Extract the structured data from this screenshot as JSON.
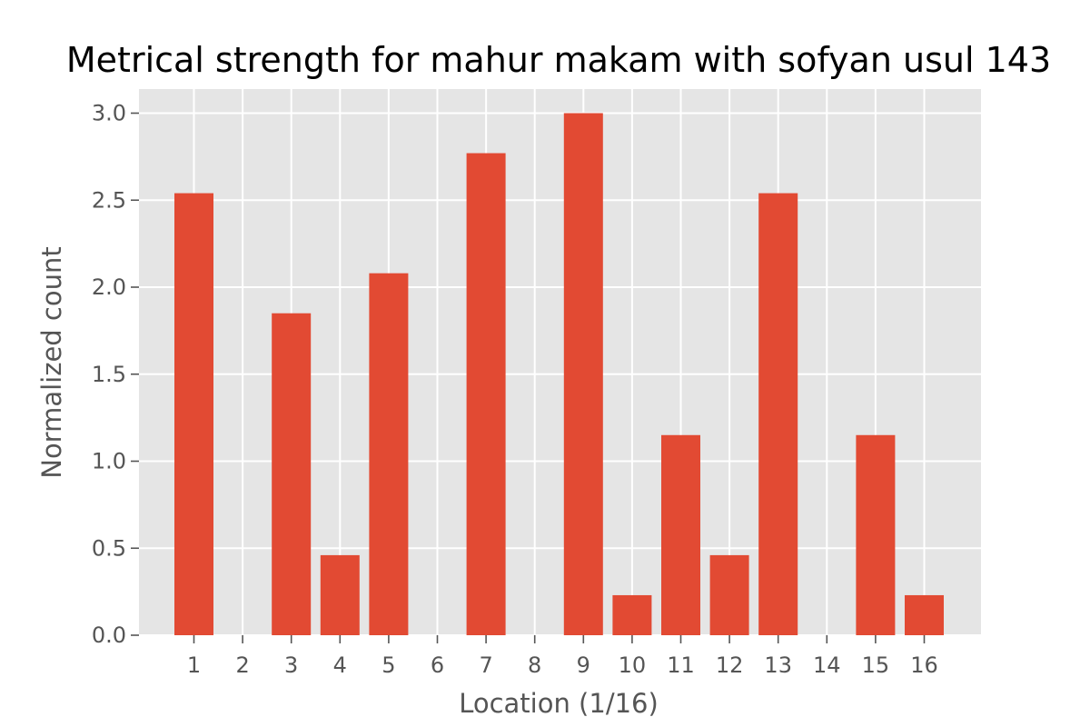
{
  "chart_data": {
    "type": "bar",
    "title": "Metrical strength for mahur makam with sofyan usul 143",
    "xlabel": "Location (1/16)",
    "ylabel": "Normalized count",
    "categories": [
      "1",
      "2",
      "3",
      "4",
      "5",
      "6",
      "7",
      "8",
      "9",
      "10",
      "11",
      "12",
      "13",
      "14",
      "15",
      "16"
    ],
    "values": [
      2.54,
      0,
      1.85,
      0.46,
      2.08,
      0,
      2.77,
      0,
      3.0,
      0.23,
      1.15,
      0.46,
      2.54,
      0,
      1.15,
      0.23
    ],
    "ylim": [
      0,
      3.2
    ],
    "yticks": [
      "0.0",
      "0.5",
      "1.0",
      "1.5",
      "2.0",
      "2.5",
      "3.0"
    ],
    "grid": true,
    "colors": {
      "bar": "#E24A33",
      "plot_background": "#E5E5E5",
      "grid": "#FFFFFF"
    }
  }
}
